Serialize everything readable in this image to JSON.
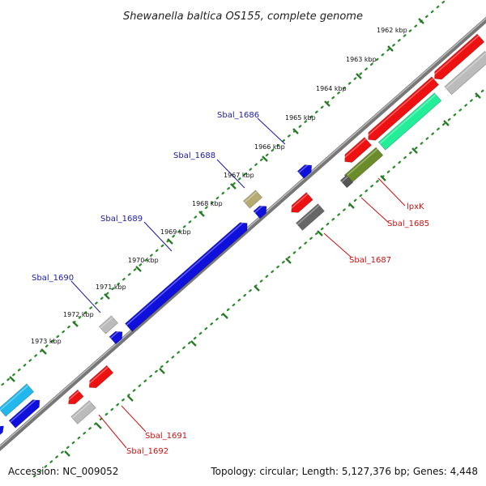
{
  "header": {
    "title": "Shewanella baltica OS155, complete genome"
  },
  "footer": {
    "accession": "Accession: NC_009052",
    "summary": "Topology: circular; Length: 5,127,376 bp; Genes: 4,448"
  },
  "ticks": [
    {
      "label": "1962 kbp"
    },
    {
      "label": "1963 kbp"
    },
    {
      "label": "1964 kbp"
    },
    {
      "label": "1965 kbp"
    },
    {
      "label": "1966 kbp"
    },
    {
      "label": "1967 kbp"
    },
    {
      "label": "1968 kbp"
    },
    {
      "label": "1969 kbp"
    },
    {
      "label": "1970 kbp"
    },
    {
      "label": "1971 kbp"
    },
    {
      "label": "1972 kbp"
    },
    {
      "label": "1973 kbp"
    }
  ],
  "gene_labels": [
    {
      "text": "Sbal_1686"
    },
    {
      "text": "Sbal_1688"
    },
    {
      "text": "Sbal_1689"
    },
    {
      "text": "Sbal_1690"
    },
    {
      "text": "lpxK"
    },
    {
      "text": "Sbal_1685"
    },
    {
      "text": "Sbal_1687"
    },
    {
      "text": "Sbal_1691"
    },
    {
      "text": "Sbal_1692"
    }
  ],
  "colors": {
    "backbone": "#777777",
    "ticks": "#2a8a2a",
    "forward_gene": "#1010dd",
    "reverse_gene": "#ee1111",
    "label_blue": "#1a1aa6",
    "label_red": "#cc1111"
  }
}
